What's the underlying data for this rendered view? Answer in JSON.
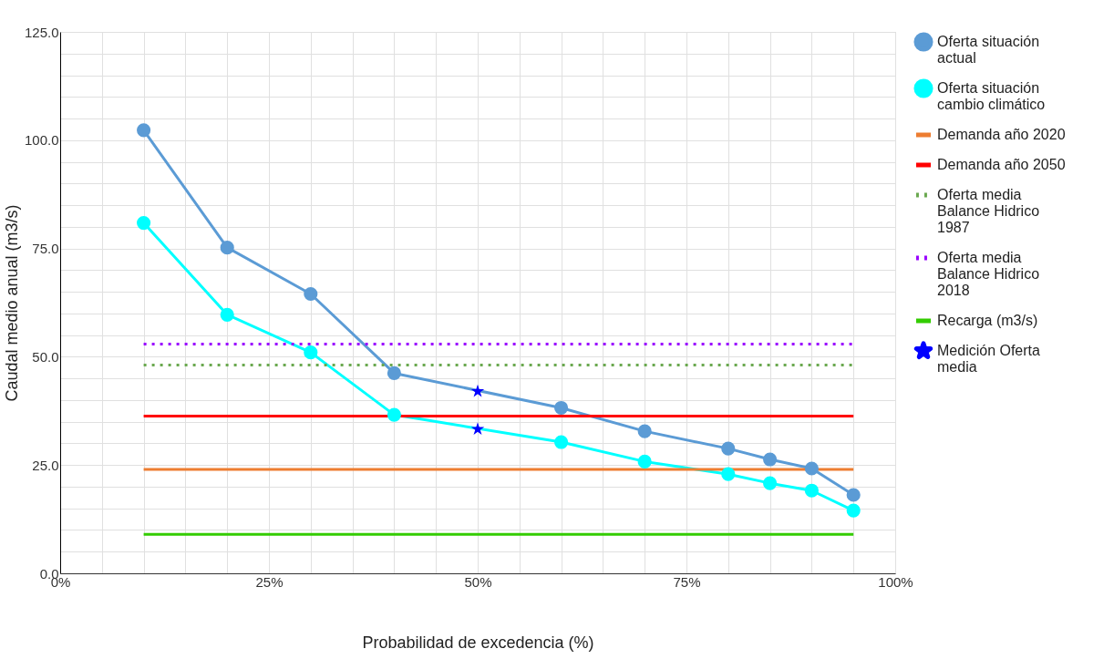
{
  "chart_data": {
    "type": "line",
    "xlabel": "Probabilidad de excedencia (%)",
    "ylabel": "Caudal medio anual (m3/s)",
    "xlim": [
      0,
      100
    ],
    "ylim": [
      0,
      125
    ],
    "xticks": [
      {
        "value": 0,
        "label": "0%"
      },
      {
        "value": 5,
        "label": null
      },
      {
        "value": 10,
        "label": null
      },
      {
        "value": 15,
        "label": null
      },
      {
        "value": 20,
        "label": null
      },
      {
        "value": 25,
        "label": "25%"
      },
      {
        "value": 30,
        "label": null
      },
      {
        "value": 35,
        "label": null
      },
      {
        "value": 40,
        "label": null
      },
      {
        "value": 45,
        "label": null
      },
      {
        "value": 50,
        "label": "50%"
      },
      {
        "value": 55,
        "label": null
      },
      {
        "value": 60,
        "label": null
      },
      {
        "value": 65,
        "label": null
      },
      {
        "value": 70,
        "label": null
      },
      {
        "value": 75,
        "label": "75%"
      },
      {
        "value": 80,
        "label": null
      },
      {
        "value": 85,
        "label": null
      },
      {
        "value": 90,
        "label": null
      },
      {
        "value": 95,
        "label": null
      },
      {
        "value": 100,
        "label": "100%"
      }
    ],
    "yticks": [
      {
        "value": 0,
        "label": "0.0"
      },
      {
        "value": 5,
        "label": null
      },
      {
        "value": 10,
        "label": null
      },
      {
        "value": 15,
        "label": null
      },
      {
        "value": 20,
        "label": null
      },
      {
        "value": 25,
        "label": "25.0"
      },
      {
        "value": 30,
        "label": null
      },
      {
        "value": 35,
        "label": null
      },
      {
        "value": 40,
        "label": null
      },
      {
        "value": 45,
        "label": null
      },
      {
        "value": 50,
        "label": "50.0"
      },
      {
        "value": 55,
        "label": null
      },
      {
        "value": 60,
        "label": null
      },
      {
        "value": 65,
        "label": null
      },
      {
        "value": 70,
        "label": null
      },
      {
        "value": 75,
        "label": "75.0"
      },
      {
        "value": 80,
        "label": null
      },
      {
        "value": 85,
        "label": null
      },
      {
        "value": 90,
        "label": null
      },
      {
        "value": 95,
        "label": null
      },
      {
        "value": 100,
        "label": "100.0"
      },
      {
        "value": 105,
        "label": null
      },
      {
        "value": 110,
        "label": null
      },
      {
        "value": 115,
        "label": null
      },
      {
        "value": 120,
        "label": null
      },
      {
        "value": 125,
        "label": "125.0"
      }
    ],
    "grid": true,
    "legend": "right",
    "series": [
      {
        "name": "Oferta situación actual",
        "marker": "circle",
        "line_style": "solid",
        "color": "#5b9bd5",
        "x": [
          10,
          20,
          30,
          40,
          60,
          70,
          80,
          85,
          90,
          95
        ],
        "values": [
          102.3,
          75.2,
          64.5,
          46.2,
          38.2,
          32.8,
          28.8,
          26.3,
          24.2,
          18.1
        ]
      },
      {
        "name": "Oferta situación cambio climático",
        "marker": "circle",
        "line_style": "solid",
        "color": "#00ffff",
        "x": [
          10,
          20,
          30,
          40,
          60,
          70,
          80,
          85,
          90,
          95
        ],
        "values": [
          80.9,
          59.7,
          51.0,
          36.6,
          30.3,
          25.8,
          22.9,
          20.8,
          19.1,
          14.5
        ]
      },
      {
        "name": "Demanda año 2020",
        "marker": "none",
        "color": "#ed7d31",
        "line_style": "solid",
        "x": [
          10,
          95
        ],
        "values": [
          24.0,
          24.0
        ]
      },
      {
        "name": "Demanda año 2050",
        "marker": "none",
        "color": "#ff0000",
        "line_style": "solid",
        "x": [
          10,
          95
        ],
        "values": [
          36.3,
          36.3
        ]
      },
      {
        "name": "Oferta media Balance Hidrico 1987",
        "marker": "none",
        "color": "#6aa84f",
        "line_style": "dotted",
        "x": [
          10,
          95
        ],
        "values": [
          48.1,
          48.1
        ]
      },
      {
        "name": "Oferta media Balance Hidrico 2018",
        "marker": "none",
        "color": "#9900ff",
        "line_style": "dotted",
        "x": [
          10,
          95
        ],
        "values": [
          52.9,
          52.9
        ]
      },
      {
        "name": "Recarga (m3/s)",
        "marker": "none",
        "color": "#33cc00",
        "line_style": "solid",
        "x": [
          10,
          95
        ],
        "values": [
          9.0,
          9.0
        ]
      },
      {
        "name": "Medición Oferta media",
        "type": "scatter",
        "marker": "star",
        "color": "#0000ff",
        "x": [
          50,
          50
        ],
        "values": [
          42.0,
          33.3
        ]
      }
    ]
  }
}
